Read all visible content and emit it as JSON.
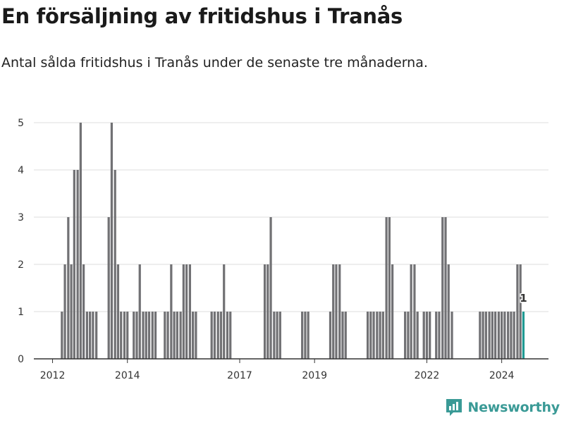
{
  "header": {
    "title": "En försäljning av fritidshus i Tranås",
    "subtitle": "Antal sålda fritidshus i Tranås under de senaste tre månaderna."
  },
  "brand": {
    "name": "Newsworthy",
    "icon": "newsworthy-chart-icon",
    "color": "#3a9a96"
  },
  "colors": {
    "bar": "#717174",
    "highlight": "#1f9a93",
    "grid": "#dddddd",
    "axis": "#333333"
  },
  "chart_data": {
    "type": "bar",
    "title": "En försäljning av fritidshus i Tranås",
    "subtitle": "Antal sålda fritidshus i Tranås under de senaste tre månaderna.",
    "xlabel": "",
    "ylabel": "",
    "ylim": [
      0,
      5
    ],
    "yticks": [
      0,
      1,
      2,
      3,
      4,
      5
    ],
    "xlim": [
      2011.5,
      2025.25
    ],
    "xticks": [
      2012,
      2014,
      2017,
      2019,
      2022,
      2024
    ],
    "grid": true,
    "legend": "none",
    "series": [
      {
        "values": [
          [
            2012.25,
            1
          ],
          [
            2012.33,
            2
          ],
          [
            2012.42,
            3
          ],
          [
            2012.5,
            2
          ],
          [
            2012.58,
            4
          ],
          [
            2012.67,
            4
          ],
          [
            2012.75,
            5
          ],
          [
            2012.83,
            2
          ],
          [
            2012.92,
            1
          ],
          [
            2013.0,
            1
          ],
          [
            2013.08,
            1
          ],
          [
            2013.17,
            1
          ],
          [
            2013.5,
            3
          ],
          [
            2013.58,
            5
          ],
          [
            2013.67,
            4
          ],
          [
            2013.75,
            2
          ],
          [
            2013.83,
            1
          ],
          [
            2013.92,
            1
          ],
          [
            2014.0,
            1
          ],
          [
            2014.17,
            1
          ],
          [
            2014.25,
            1
          ],
          [
            2014.33,
            2
          ],
          [
            2014.42,
            1
          ],
          [
            2014.5,
            1
          ],
          [
            2014.58,
            1
          ],
          [
            2014.67,
            1
          ],
          [
            2014.75,
            1
          ],
          [
            2015.0,
            1
          ],
          [
            2015.08,
            1
          ],
          [
            2015.17,
            2
          ],
          [
            2015.25,
            1
          ],
          [
            2015.33,
            1
          ],
          [
            2015.42,
            1
          ],
          [
            2015.5,
            2
          ],
          [
            2015.58,
            2
          ],
          [
            2015.67,
            2
          ],
          [
            2015.75,
            1
          ],
          [
            2015.83,
            1
          ],
          [
            2016.25,
            1
          ],
          [
            2016.33,
            1
          ],
          [
            2016.42,
            1
          ],
          [
            2016.5,
            1
          ],
          [
            2016.58,
            2
          ],
          [
            2016.67,
            1
          ],
          [
            2016.75,
            1
          ],
          [
            2017.67,
            2
          ],
          [
            2017.75,
            2
          ],
          [
            2017.83,
            3
          ],
          [
            2017.92,
            1
          ],
          [
            2018.0,
            1
          ],
          [
            2018.08,
            1
          ],
          [
            2018.67,
            1
          ],
          [
            2018.75,
            1
          ],
          [
            2018.83,
            1
          ],
          [
            2019.42,
            1
          ],
          [
            2019.5,
            2
          ],
          [
            2019.58,
            2
          ],
          [
            2019.67,
            2
          ],
          [
            2019.75,
            1
          ],
          [
            2019.83,
            1
          ],
          [
            2020.42,
            1
          ],
          [
            2020.5,
            1
          ],
          [
            2020.58,
            1
          ],
          [
            2020.67,
            1
          ],
          [
            2020.75,
            1
          ],
          [
            2020.83,
            1
          ],
          [
            2020.92,
            3
          ],
          [
            2021.0,
            3
          ],
          [
            2021.08,
            2
          ],
          [
            2021.42,
            1
          ],
          [
            2021.5,
            1
          ],
          [
            2021.58,
            2
          ],
          [
            2021.67,
            2
          ],
          [
            2021.75,
            1
          ],
          [
            2021.92,
            1
          ],
          [
            2022.0,
            1
          ],
          [
            2022.08,
            1
          ],
          [
            2022.25,
            1
          ],
          [
            2022.33,
            1
          ],
          [
            2022.42,
            3
          ],
          [
            2022.5,
            3
          ],
          [
            2022.58,
            2
          ],
          [
            2022.67,
            1
          ],
          [
            2023.42,
            1
          ],
          [
            2023.5,
            1
          ],
          [
            2023.58,
            1
          ],
          [
            2023.67,
            1
          ],
          [
            2023.75,
            1
          ],
          [
            2023.83,
            1
          ],
          [
            2023.92,
            1
          ],
          [
            2024.0,
            1
          ],
          [
            2024.08,
            1
          ],
          [
            2024.17,
            1
          ],
          [
            2024.25,
            1
          ],
          [
            2024.33,
            1
          ],
          [
            2024.42,
            2
          ],
          [
            2024.5,
            2
          ]
        ]
      }
    ],
    "highlight": {
      "x": 2024.58,
      "value": 1,
      "label": "1"
    }
  }
}
